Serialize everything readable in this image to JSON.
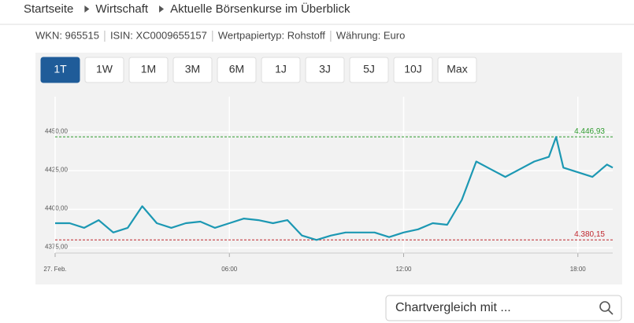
{
  "breadcrumbs": [
    "Startseite",
    "Wirtschaft",
    "Aktuelle Börsenkurse im Überblick"
  ],
  "info": [
    "WKN: 965515",
    "ISIN: XC0009655157",
    "Wertpapiertyp: Rohstoff",
    "Währung: Euro"
  ],
  "range_buttons": [
    "1T",
    "1W",
    "1M",
    "3M",
    "6M",
    "1J",
    "3J",
    "5J",
    "10J",
    "Max"
  ],
  "active_range": 0,
  "search_placeholder": "Chartvergleich mit ...",
  "chart_data": {
    "type": "line",
    "color": "#1c98b3",
    "x": [
      0,
      0.5,
      1,
      1.5,
      2,
      2.5,
      3,
      3.5,
      4,
      4.5,
      5,
      5.5,
      6,
      6.5,
      7,
      7.5,
      8,
      8.5,
      9,
      9.5,
      10,
      10.5,
      11,
      11.5,
      12,
      12.5,
      13,
      13.5,
      14,
      14.5,
      15,
      15.5,
      16,
      16.5,
      17,
      17.25,
      17.5,
      18,
      18.5,
      19,
      19.2
    ],
    "values": [
      4391,
      4391,
      4388,
      4393,
      4385,
      4388,
      4402,
      4391,
      4388,
      4391,
      4392,
      4388,
      4391,
      4394,
      4393,
      4391,
      4393,
      4383,
      4380.15,
      4383,
      4385,
      4385,
      4385,
      4382,
      4385,
      4387,
      4391,
      4390,
      4406,
      4431,
      4426,
      4421,
      4426,
      4431,
      4434,
      4446.93,
      4427,
      4424,
      4421,
      4429,
      4427
    ],
    "xlim": [
      0,
      19.2
    ],
    "xticks": [
      {
        "value": 0,
        "label": "27. Feb."
      },
      {
        "value": 6,
        "label": "06:00"
      },
      {
        "value": 12,
        "label": "12:00"
      },
      {
        "value": 18,
        "label": "18:00"
      }
    ],
    "ylim": [
      4364,
      4473
    ],
    "yticks": [
      {
        "value": 4375,
        "label": "4375,00"
      },
      {
        "value": 4400,
        "label": "4400,00"
      },
      {
        "value": 4425,
        "label": "4425,00"
      },
      {
        "value": 4450,
        "label": "4450,00"
      }
    ],
    "grid": true,
    "reference_lines": [
      {
        "value": 4446.93,
        "label": "4.446,93",
        "color": "#2e9a2e"
      },
      {
        "value": 4380.15,
        "label": "4.380,15",
        "color": "#c0262d"
      }
    ]
  }
}
